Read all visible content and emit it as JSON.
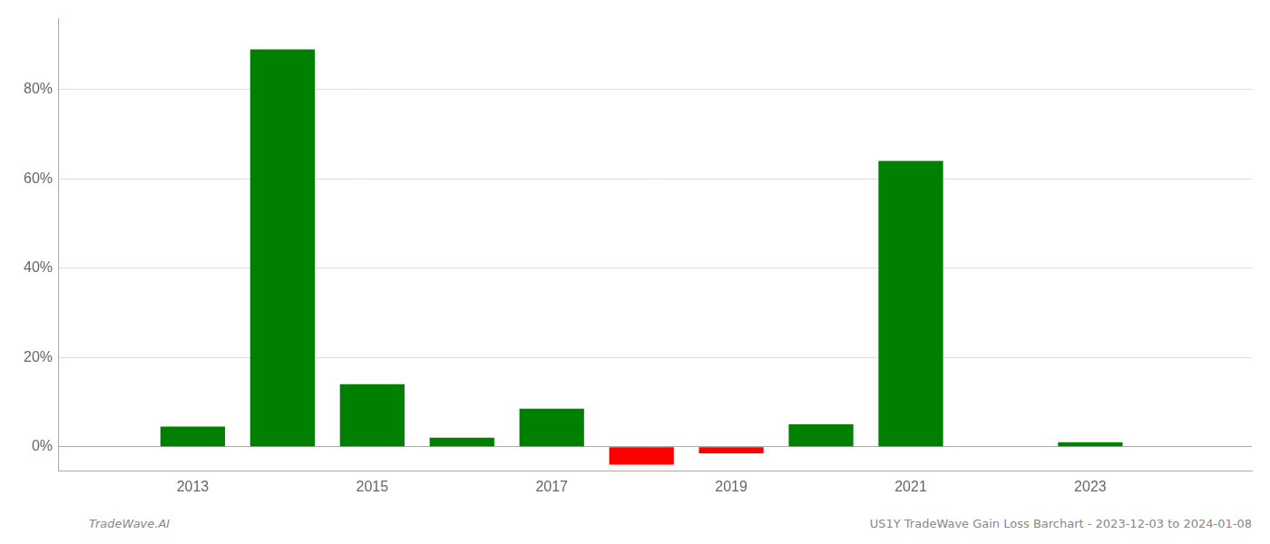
{
  "chart_data": {
    "type": "bar",
    "x": [
      2013,
      2014,
      2015,
      2016,
      2017,
      2018,
      2019,
      2020,
      2021,
      2022,
      2023
    ],
    "values": [
      0.045,
      0.89,
      0.14,
      0.02,
      0.085,
      -0.04,
      -0.015,
      0.05,
      0.64,
      0.0,
      0.01
    ],
    "colors": [
      "#008000",
      "#008000",
      "#008000",
      "#008000",
      "#008000",
      "#ff0000",
      "#ff0000",
      "#008000",
      "#008000",
      "#008000",
      "#008000"
    ],
    "xlim": [
      2011.5,
      2024.8
    ],
    "xticks": [
      2013,
      2015,
      2017,
      2019,
      2021,
      2023
    ],
    "ylim": [
      -0.055,
      0.96
    ],
    "yticks": [
      {
        "value": 0.0,
        "label": "0%"
      },
      {
        "value": 0.2,
        "label": "20%"
      },
      {
        "value": 0.4,
        "label": "40%"
      },
      {
        "value": 0.6,
        "label": "60%"
      },
      {
        "value": 0.8,
        "label": "80%"
      }
    ],
    "grid": "y",
    "annotations": [
      "TradeWave.AI",
      "US1Y TradeWave Gain Loss Barchart - 2023-12-03 to 2024-01-08"
    ]
  }
}
